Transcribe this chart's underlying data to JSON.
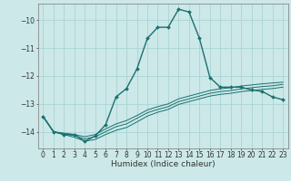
{
  "xlabel": "Humidex (Indice chaleur)",
  "ylabel": "",
  "bg_color": "#cce8e8",
  "grid_color": "#aad4d4",
  "line_color": "#1a7070",
  "xlim": [
    -0.5,
    23.5
  ],
  "ylim": [
    -14.6,
    -9.4
  ],
  "yticks": [
    -14,
    -13,
    -12,
    -11,
    -10
  ],
  "xticks": [
    0,
    1,
    2,
    3,
    4,
    5,
    6,
    7,
    8,
    9,
    10,
    11,
    12,
    13,
    14,
    15,
    16,
    17,
    18,
    19,
    20,
    21,
    22,
    23
  ],
  "xtick_labels": [
    "0",
    "1",
    "2",
    "3",
    "4",
    "5",
    "6",
    "7",
    "8",
    "9",
    "10",
    "11",
    "12",
    "13",
    "14",
    "15",
    "16",
    "17",
    "18",
    "19",
    "20",
    "21",
    "22",
    "23"
  ],
  "main_x": [
    0,
    1,
    2,
    3,
    4,
    5,
    6,
    7,
    8,
    9,
    10,
    11,
    12,
    13,
    14,
    15,
    16,
    17,
    18,
    19,
    20,
    21,
    22,
    23
  ],
  "main_y": [
    -13.45,
    -14.0,
    -14.1,
    -14.1,
    -14.35,
    -14.15,
    -13.75,
    -12.75,
    -12.45,
    -11.75,
    -10.65,
    -10.25,
    -10.25,
    -9.6,
    -9.7,
    -10.65,
    -12.05,
    -12.4,
    -12.4,
    -12.4,
    -12.5,
    -12.55,
    -12.75,
    -12.85
  ],
  "line1_x": [
    0,
    1,
    2,
    3,
    4,
    5,
    6,
    7,
    8,
    9,
    10,
    11,
    12,
    13,
    14,
    15,
    16,
    17,
    18,
    19,
    20,
    21,
    22,
    23
  ],
  "line1_y": [
    -13.45,
    -14.0,
    -14.05,
    -14.1,
    -14.18,
    -14.1,
    -13.9,
    -13.72,
    -13.6,
    -13.42,
    -13.22,
    -13.1,
    -13.0,
    -12.82,
    -12.72,
    -12.62,
    -12.52,
    -12.46,
    -12.42,
    -12.36,
    -12.32,
    -12.28,
    -12.25,
    -12.22
  ],
  "line2_x": [
    0,
    1,
    2,
    3,
    4,
    5,
    6,
    7,
    8,
    9,
    10,
    11,
    12,
    13,
    14,
    15,
    16,
    17,
    18,
    19,
    20,
    21,
    22,
    23
  ],
  "line2_y": [
    -13.45,
    -14.0,
    -14.08,
    -14.14,
    -14.26,
    -14.18,
    -14.0,
    -13.82,
    -13.72,
    -13.52,
    -13.32,
    -13.2,
    -13.1,
    -12.92,
    -12.82,
    -12.72,
    -12.62,
    -12.56,
    -12.52,
    -12.46,
    -12.42,
    -12.38,
    -12.35,
    -12.3
  ],
  "line3_x": [
    0,
    1,
    2,
    3,
    4,
    5,
    6,
    7,
    8,
    9,
    10,
    11,
    12,
    13,
    14,
    15,
    16,
    17,
    18,
    19,
    20,
    21,
    22,
    23
  ],
  "line3_y": [
    -13.45,
    -14.0,
    -14.1,
    -14.2,
    -14.34,
    -14.28,
    -14.1,
    -13.95,
    -13.85,
    -13.65,
    -13.44,
    -13.3,
    -13.2,
    -13.02,
    -12.92,
    -12.82,
    -12.72,
    -12.66,
    -12.62,
    -12.56,
    -12.52,
    -12.48,
    -12.45,
    -12.4
  ]
}
